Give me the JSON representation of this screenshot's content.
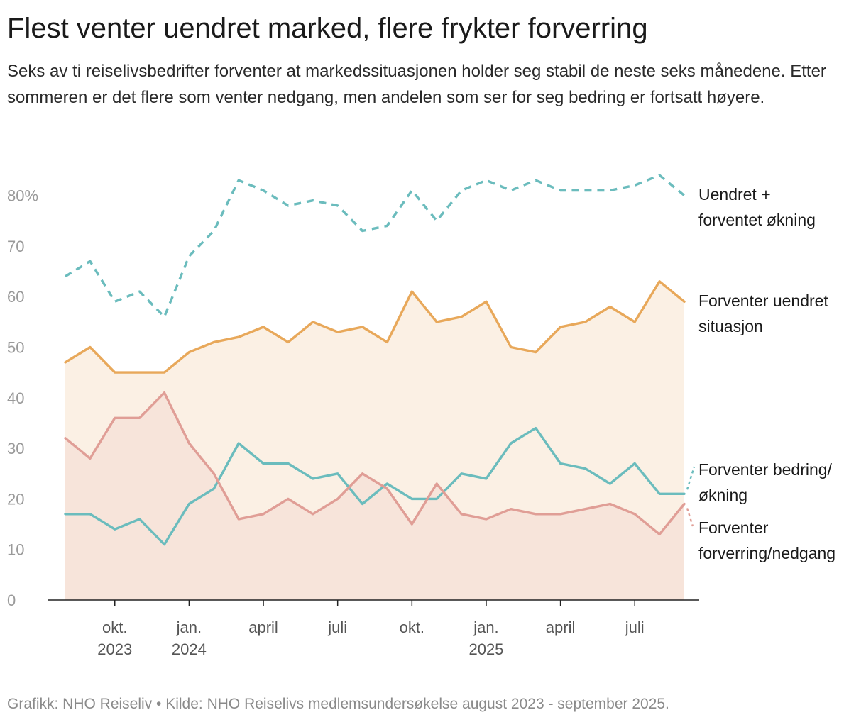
{
  "title": "Flest venter uendret marked, flere frykter forverring",
  "subtitle": "Seks av ti reiselivsbedrifter forventer at markedssituasjonen holder seg stabil de neste seks månedene. Etter sommeren er det flere som venter nedgang, men andelen som ser for seg bedring er fortsatt høyere.",
  "footer": "Grafikk: NHO Reiseliv • Kilde: NHO Reiselivs medlemsundersøkelse august 2023 - september 2025.",
  "chart_data": {
    "type": "line",
    "x": [
      "2023-08",
      "2023-09",
      "2023-10",
      "2023-11",
      "2023-12",
      "2024-01",
      "2024-02",
      "2024-03",
      "2024-04",
      "2024-05",
      "2024-06",
      "2024-07",
      "2024-08",
      "2024-09",
      "2024-10",
      "2024-11",
      "2024-12",
      "2025-01",
      "2025-02",
      "2025-03",
      "2025-04",
      "2025-05",
      "2025-06",
      "2025-07",
      "2025-08",
      "2025-09"
    ],
    "ylim": [
      0,
      85
    ],
    "yticks": [
      0,
      10,
      20,
      30,
      40,
      50,
      60,
      70,
      80
    ],
    "ytick_labels": [
      "0",
      "10",
      "20",
      "30",
      "40",
      "50",
      "60",
      "70",
      "80%"
    ],
    "xticks": [
      {
        "x": "2023-10",
        "lines": [
          "okt.",
          "2023"
        ]
      },
      {
        "x": "2024-01",
        "lines": [
          "jan.",
          "2024"
        ]
      },
      {
        "x": "2024-04",
        "lines": [
          "april"
        ]
      },
      {
        "x": "2024-07",
        "lines": [
          "juli"
        ]
      },
      {
        "x": "2024-10",
        "lines": [
          "okt."
        ]
      },
      {
        "x": "2025-01",
        "lines": [
          "jan.",
          "2025"
        ]
      },
      {
        "x": "2025-04",
        "lines": [
          "april"
        ]
      },
      {
        "x": "2025-07",
        "lines": [
          "juli"
        ]
      }
    ],
    "grid": false,
    "series": [
      {
        "name": "Uendret + forventet økning",
        "label_lines": [
          "Uendret +",
          "forventet økning"
        ],
        "color": "#6bbcbd",
        "style": "dashed",
        "values": [
          64,
          67,
          59,
          61,
          56,
          68,
          73,
          83,
          81,
          78,
          79,
          78,
          73,
          74,
          81,
          75,
          81,
          83,
          81,
          83,
          81,
          81,
          81,
          82,
          84,
          80
        ]
      },
      {
        "name": "Forventer uendret situasjon",
        "label_lines": [
          "Forventer uendret",
          "situasjon"
        ],
        "color": "#e8a85a",
        "style": "solid",
        "fill": "#fbf0e4",
        "values": [
          47,
          50,
          45,
          45,
          45,
          49,
          51,
          52,
          54,
          51,
          55,
          53,
          54,
          51,
          61,
          55,
          56,
          59,
          50,
          49,
          54,
          55,
          58,
          55,
          63,
          59
        ]
      },
      {
        "name": "Forventer bedring/økning",
        "label_lines": [
          "Forventer bedring/",
          "økning"
        ],
        "color": "#6bbcbd",
        "style": "solid",
        "values": [
          17,
          17,
          14,
          16,
          11,
          19,
          22,
          31,
          27,
          27,
          24,
          25,
          19,
          23,
          20,
          20,
          25,
          24,
          31,
          34,
          27,
          26,
          23,
          27,
          21,
          21
        ]
      },
      {
        "name": "Forventer forverring/nedgang",
        "label_lines": [
          "Forventer",
          "forverring/nedgang"
        ],
        "color": "#e09e96",
        "style": "solid",
        "fill": "#f7e4da",
        "values": [
          32,
          28,
          36,
          36,
          41,
          31,
          25,
          16,
          17,
          20,
          17,
          20,
          25,
          22,
          15,
          23,
          17,
          16,
          18,
          17,
          17,
          18,
          19,
          17,
          13,
          19
        ]
      }
    ]
  }
}
